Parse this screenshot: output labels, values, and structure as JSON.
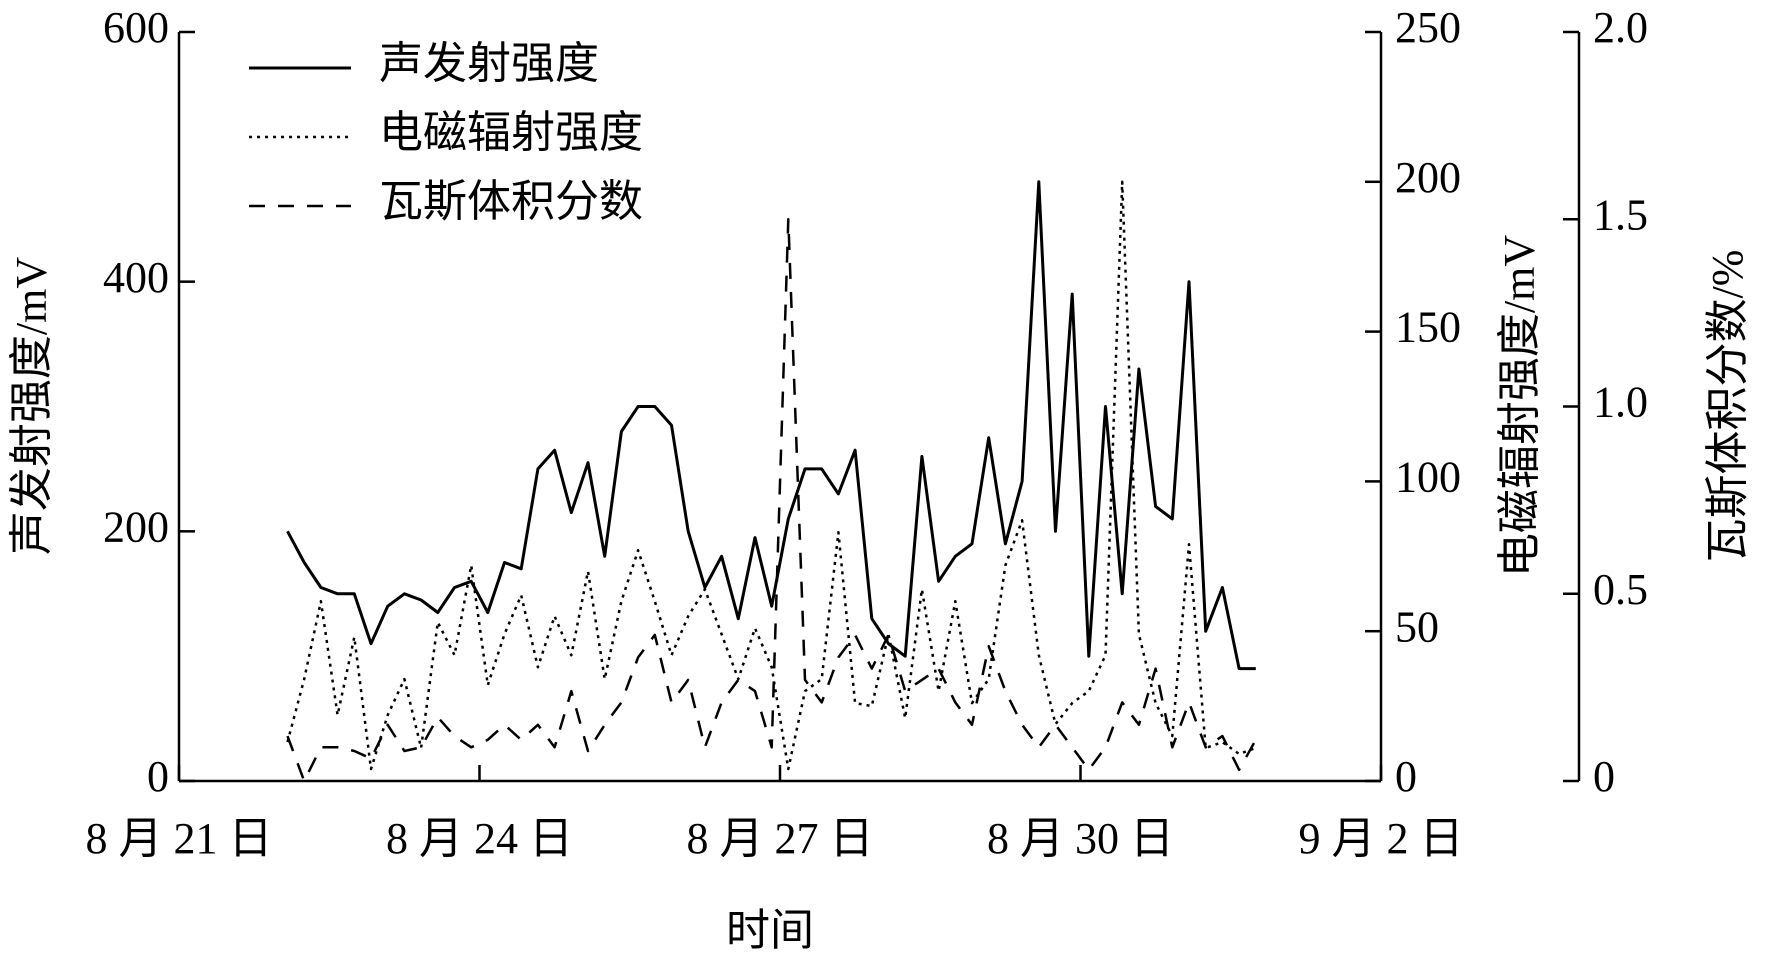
{
  "chart_data": {
    "type": "line",
    "xlabel": "时间",
    "ylabel": "声发射强度/mV",
    "y2label": "电磁辐射强度/mV",
    "y3label": "瓦斯体积分数/%",
    "legend": "upper left",
    "xlim": [
      "08-21",
      "09-02"
    ],
    "xticks": [
      {
        "value": "08-21",
        "label": "8 月 21 日"
      },
      {
        "value": "08-24",
        "label": "8 月 24 日"
      },
      {
        "value": "08-27",
        "label": "8 月 27 日"
      },
      {
        "value": "08-30",
        "label": "8 月 30 日"
      },
      {
        "value": "09-02",
        "label": "9 月 2 日"
      }
    ],
    "ylim": [
      0,
      600
    ],
    "yticks": [
      0,
      200,
      400,
      600
    ],
    "y2lim": [
      0,
      250
    ],
    "y2ticks": [
      0,
      50,
      100,
      150,
      200,
      250
    ],
    "y3lim": [
      0,
      2
    ],
    "y3ticks": [
      0,
      0.5,
      {
        "value": 1,
        "label": "1.0"
      },
      1.5,
      {
        "value": 2,
        "label": "2.0"
      }
    ],
    "x": [
      "08-22 02:00",
      "08-22 06:00",
      "08-22 10:00",
      "08-22 14:00",
      "08-22 18:00",
      "08-22 22:00",
      "08-23 02:00",
      "08-23 06:00",
      "08-23 10:00",
      "08-23 14:00",
      "08-23 18:00",
      "08-23 22:00",
      "08-24 02:00",
      "08-24 06:00",
      "08-24 10:00",
      "08-24 14:00",
      "08-24 18:00",
      "08-24 22:00",
      "08-25 02:00",
      "08-25 06:00",
      "08-25 10:00",
      "08-25 14:00",
      "08-25 18:00",
      "08-25 22:00",
      "08-26 02:00",
      "08-26 06:00",
      "08-26 10:00",
      "08-26 14:00",
      "08-26 18:00",
      "08-26 22:00",
      "08-27 02:00",
      "08-27 06:00",
      "08-27 10:00",
      "08-27 14:00",
      "08-27 18:00",
      "08-27 22:00",
      "08-28 02:00",
      "08-28 06:00",
      "08-28 10:00",
      "08-28 14:00",
      "08-28 18:00",
      "08-28 22:00",
      "08-29 02:00",
      "08-29 06:00",
      "08-29 10:00",
      "08-29 14:00",
      "08-29 18:00",
      "08-29 22:00",
      "08-30 02:00",
      "08-30 06:00",
      "08-30 10:00",
      "08-30 14:00",
      "08-30 18:00",
      "08-30 22:00",
      "08-31 02:00",
      "08-31 06:00",
      "08-31 10:00",
      "08-31 14:00",
      "08-31 18:00"
    ],
    "series": [
      {
        "name": "声发射强度",
        "color": "#000000",
        "style": "solid",
        "axis": "y",
        "values": [
          200,
          175,
          155,
          150,
          150,
          110,
          140,
          150,
          145,
          135,
          155,
          160,
          135,
          175,
          170,
          250,
          265,
          215,
          255,
          180,
          280,
          300,
          300,
          285,
          200,
          155,
          180,
          130,
          195,
          140,
          210,
          250,
          250,
          230,
          265,
          130,
          110,
          100,
          260,
          160,
          180,
          190,
          275,
          190,
          240,
          480,
          200,
          390,
          100,
          300,
          150,
          330,
          220,
          210,
          400,
          120,
          155,
          90,
          90
        ]
      },
      {
        "name": "电磁辐射强度",
        "color": "#000000",
        "style": "dotted",
        "axis": "y2",
        "values": [
          13,
          34,
          60,
          22,
          48,
          4,
          22,
          34,
          11,
          53,
          42,
          72,
          32,
          49,
          62,
          38,
          55,
          42,
          70,
          34,
          60,
          77,
          60,
          42,
          55,
          64,
          49,
          34,
          51,
          38,
          4,
          30,
          34,
          83,
          26,
          25,
          49,
          21,
          64,
          30,
          60,
          26,
          34,
          72,
          87,
          42,
          19,
          26,
          30,
          42,
          200,
          49,
          26,
          15,
          79,
          11,
          13,
          9,
          11
        ]
      },
      {
        "name": "瓦斯体积分数",
        "color": "#000000",
        "style": "dashed",
        "axis": "y3",
        "values": [
          0.12,
          0,
          0.09,
          0.09,
          0.08,
          0.06,
          0.15,
          0.08,
          0.09,
          0.17,
          0.12,
          0.09,
          0.11,
          0.15,
          0.11,
          0.15,
          0.09,
          0.24,
          0.08,
          0.15,
          0.21,
          0.33,
          0.39,
          0.21,
          0.27,
          0.09,
          0.21,
          0.27,
          0.24,
          0.09,
          1.5,
          0.27,
          0.21,
          0.33,
          0.39,
          0.3,
          0.39,
          0.24,
          0.27,
          0.3,
          0.21,
          0.15,
          0.36,
          0.24,
          0.15,
          0.09,
          0.15,
          0.09,
          0.03,
          0.09,
          0.21,
          0.15,
          0.3,
          0.09,
          0.21,
          0.09,
          0.12,
          0.03,
          0.11
        ]
      }
    ]
  }
}
